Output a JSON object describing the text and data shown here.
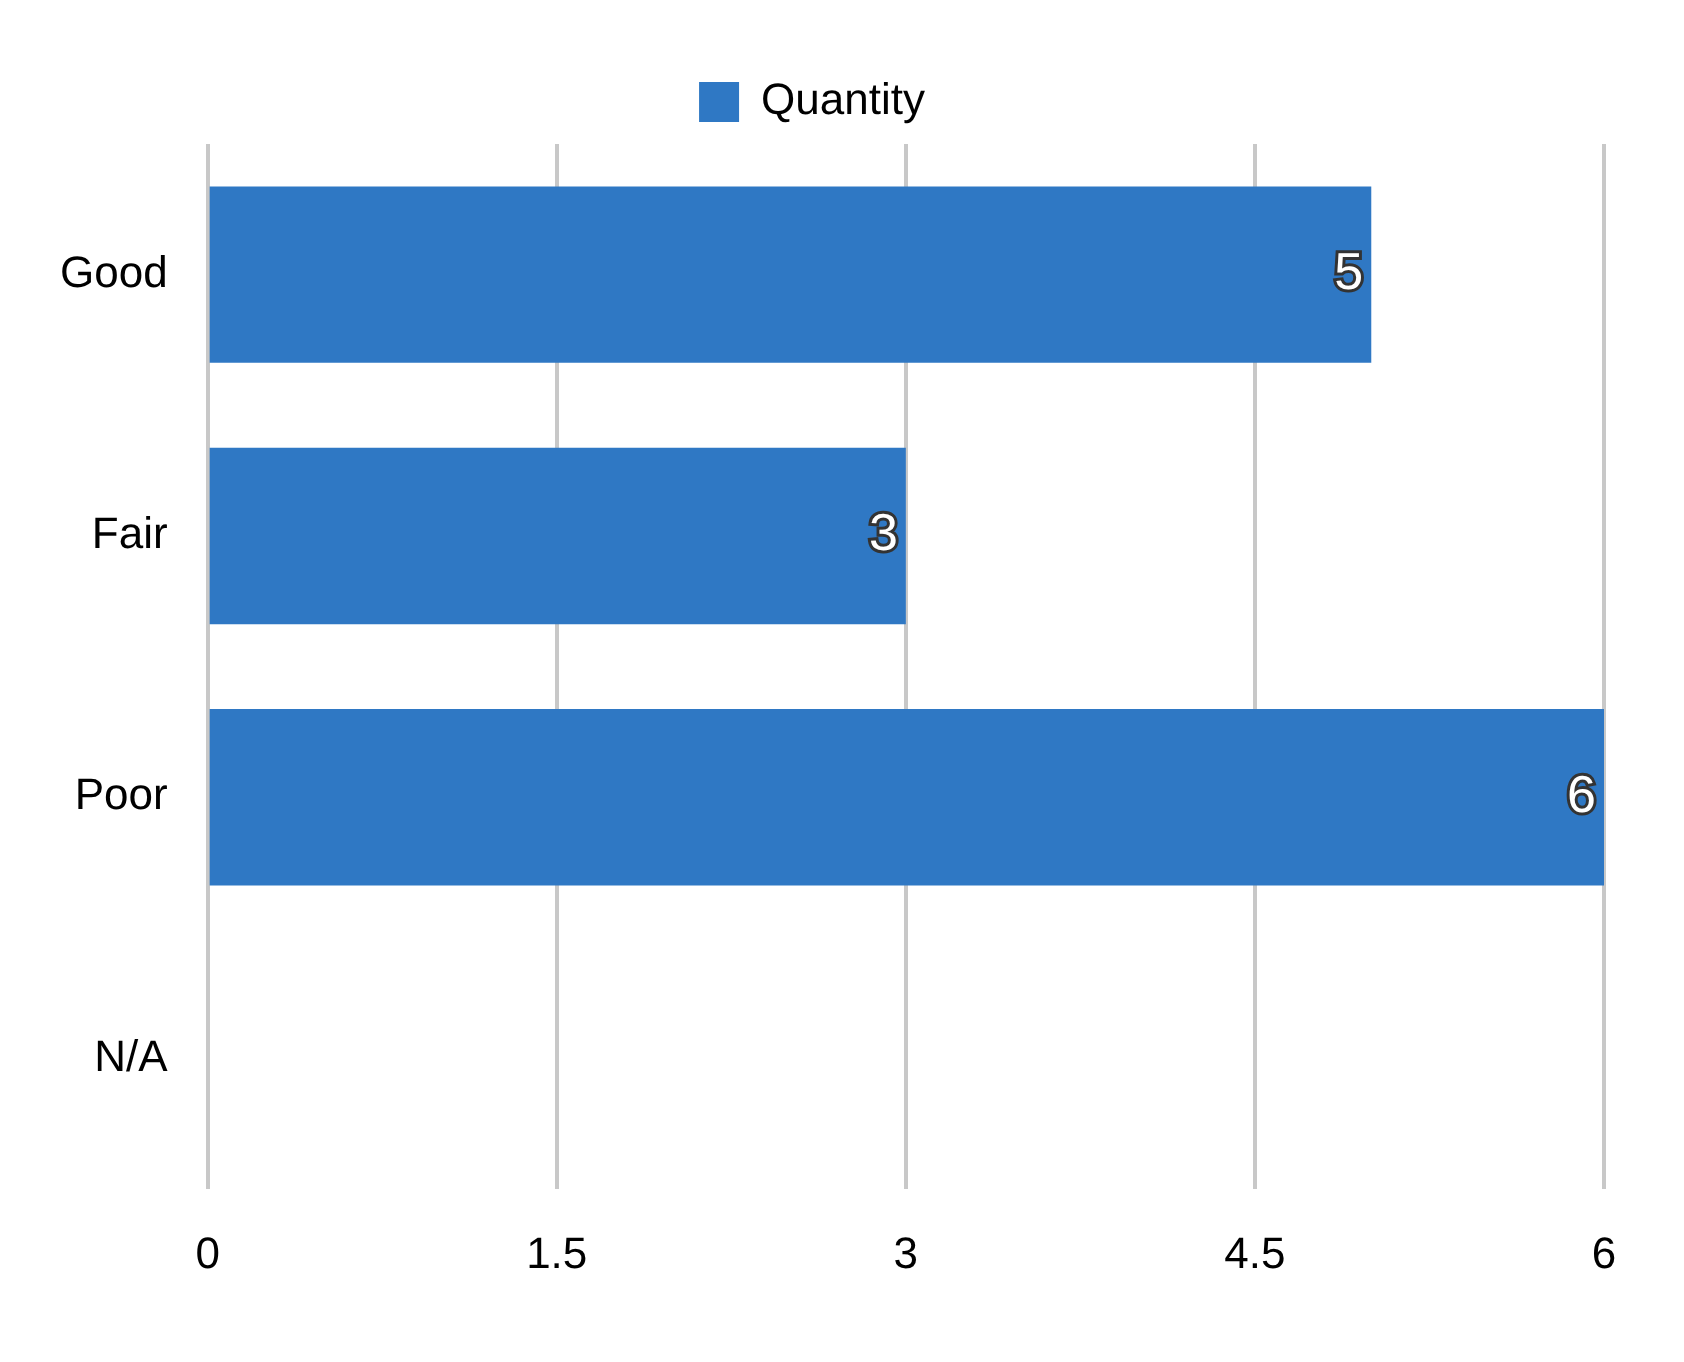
{
  "chart_data": {
    "type": "bar",
    "orientation": "horizontal",
    "categories": [
      "Good",
      "Fair",
      "Poor",
      "N/A"
    ],
    "series": [
      {
        "name": "Quantity",
        "color": "#2f78c4",
        "values": [
          5,
          3,
          6,
          null
        ],
        "value_labels": [
          "5",
          "3",
          "6",
          null
        ]
      }
    ],
    "xlim": [
      0,
      6
    ],
    "xticks": [
      0,
      1.5,
      3,
      4.5,
      6
    ],
    "grid": "x",
    "legend": "top"
  }
}
